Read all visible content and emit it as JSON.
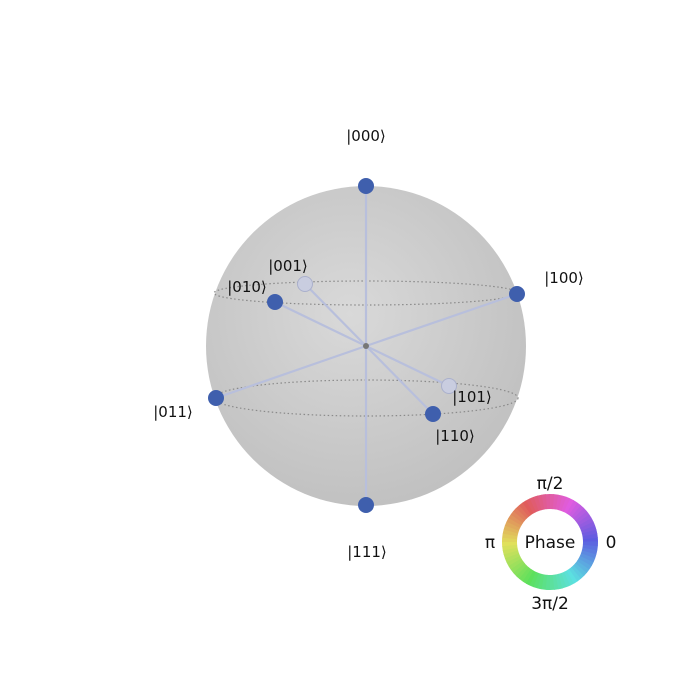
{
  "diagram": {
    "type": "qsphere",
    "states": [
      {
        "label": "|000⟩",
        "hidden": false
      },
      {
        "label": "|001⟩",
        "hidden": true
      },
      {
        "label": "|010⟩",
        "hidden": false
      },
      {
        "label": "|011⟩",
        "hidden": false
      },
      {
        "label": "|100⟩",
        "hidden": false
      },
      {
        "label": "|101⟩",
        "hidden": true
      },
      {
        "label": "|110⟩",
        "hidden": false
      },
      {
        "label": "|111⟩",
        "hidden": false
      }
    ]
  },
  "legend": {
    "center_text": "Phase",
    "top": "π/2",
    "left": "π",
    "right": "0",
    "bottom": "3π/2"
  },
  "colors": {
    "state_marker": "#3f5fad",
    "sphere": "#d0d0d0",
    "edge": "#b8bfdc"
  }
}
